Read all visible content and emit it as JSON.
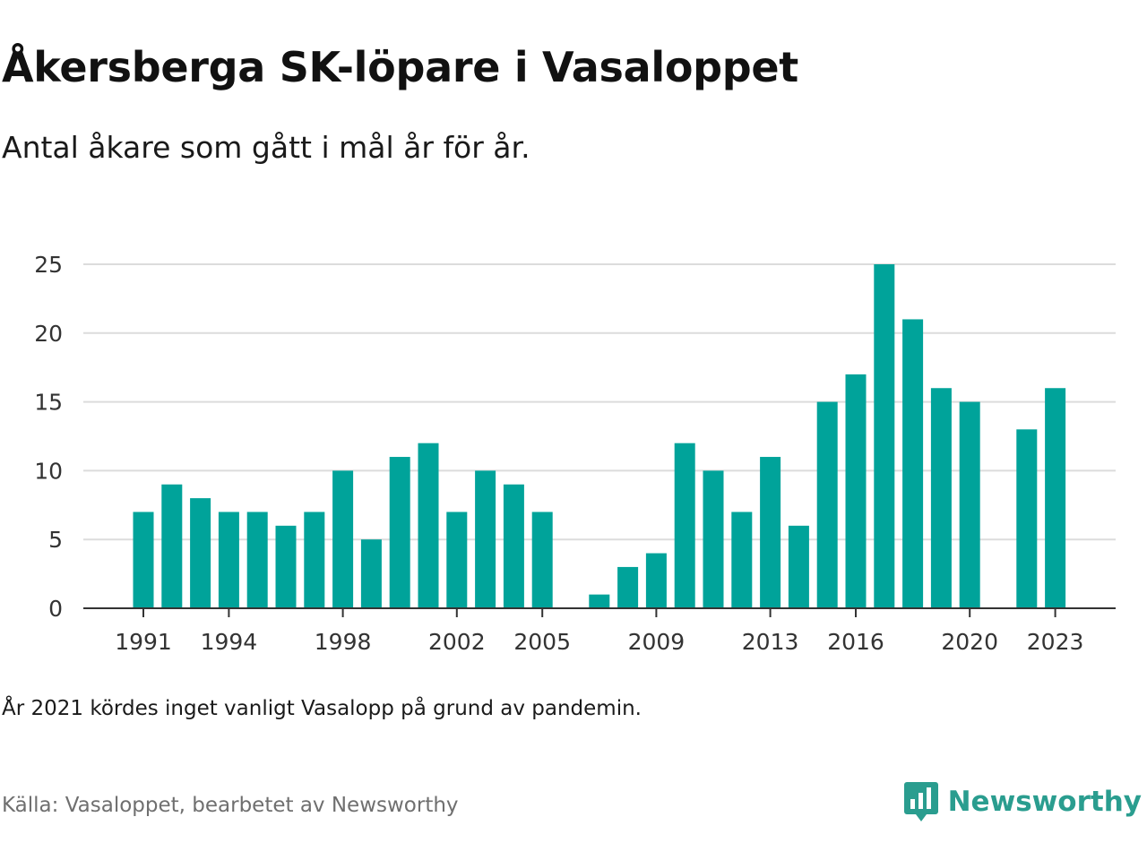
{
  "title": "Åkersberga SK-löpare i Vasaloppet",
  "subtitle": "Antal åkare som gått i mål år för år.",
  "note": "År 2021 kördes inget vanligt Vasalopp på grund av pandemin.",
  "source": "Källa: Vasaloppet, bearbetet av Newsworthy",
  "logo": {
    "text": "Newsworthy",
    "icon": "newsworthy-chart-bubble-icon",
    "color": "#2a9d8f"
  },
  "colors": {
    "bar": "#00a39a",
    "grid": "#dcdcdc",
    "axis": "#333333",
    "tick_text": "#333333"
  },
  "chart_data": {
    "type": "bar",
    "title": "",
    "xlabel": "",
    "ylabel": "",
    "ylim": [
      0,
      25
    ],
    "yticks": [
      0,
      5,
      10,
      15,
      20,
      25
    ],
    "xticks": [
      1991,
      1994,
      1998,
      2002,
      2005,
      2009,
      2013,
      2016,
      2020,
      2023
    ],
    "grid": true,
    "legend": "none",
    "x": [
      1991,
      1992,
      1993,
      1994,
      1995,
      1996,
      1997,
      1998,
      1999,
      2000,
      2001,
      2002,
      2003,
      2004,
      2005,
      2006,
      2007,
      2008,
      2009,
      2010,
      2011,
      2012,
      2013,
      2014,
      2015,
      2016,
      2017,
      2018,
      2019,
      2020,
      2021,
      2022,
      2023
    ],
    "values": [
      7,
      9,
      8,
      7,
      7,
      6,
      7,
      10,
      5,
      11,
      12,
      7,
      10,
      9,
      7,
      null,
      1,
      3,
      4,
      12,
      10,
      7,
      11,
      6,
      15,
      17,
      25,
      21,
      16,
      15,
      null,
      13,
      16
    ]
  }
}
